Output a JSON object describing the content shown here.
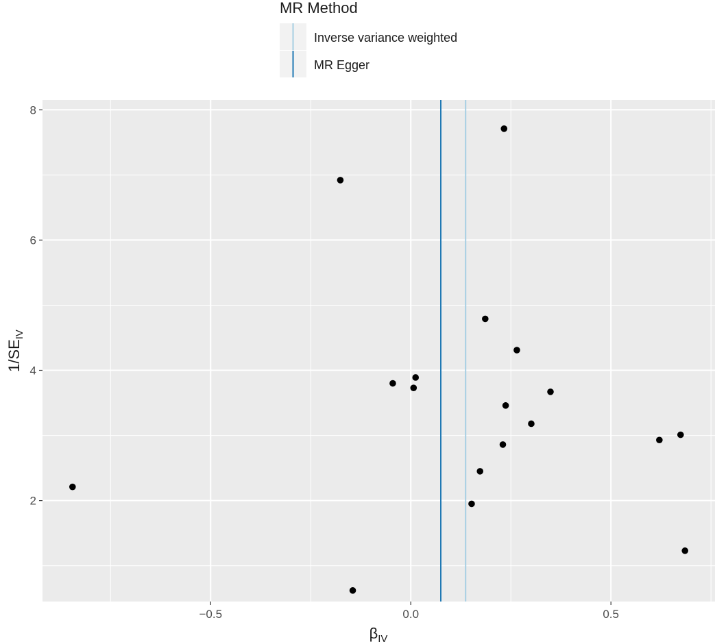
{
  "chart_data": {
    "type": "scatter",
    "title": "",
    "xlabel_main": "β",
    "xlabel_sub": "IV",
    "ylabel_main": "1/SE",
    "ylabel_sub": "IV",
    "xlim": [
      -0.92,
      0.76
    ],
    "ylim": [
      0.45,
      8.15
    ],
    "x_ticks": [
      -0.5,
      0.0,
      0.5
    ],
    "x_tick_labels": [
      "−0.5",
      "0.0",
      "0.5"
    ],
    "y_ticks": [
      2,
      4,
      6,
      8
    ],
    "y_tick_labels": [
      "2",
      "4",
      "6",
      "8"
    ],
    "grid": true,
    "legend_position": "top",
    "legend": {
      "title": "MR Method",
      "entries": [
        {
          "label": "Inverse variance weighted",
          "color": "#a6cee3"
        },
        {
          "label": "MR Egger",
          "color": "#1f78b4"
        }
      ]
    },
    "vlines": [
      {
        "method": "MR Egger",
        "x": 0.075,
        "color": "#1f78b4"
      },
      {
        "method": "Inverse variance weighted",
        "x": 0.137,
        "color": "#a6cee3"
      }
    ],
    "points": [
      {
        "x": 0.233,
        "y": 7.71
      },
      {
        "x": -0.176,
        "y": 6.92
      },
      {
        "x": 0.186,
        "y": 4.79
      },
      {
        "x": 0.265,
        "y": 4.31
      },
      {
        "x": 0.012,
        "y": 3.89
      },
      {
        "x": -0.045,
        "y": 3.8
      },
      {
        "x": 0.007,
        "y": 3.73
      },
      {
        "x": 0.349,
        "y": 3.67
      },
      {
        "x": 0.237,
        "y": 3.46
      },
      {
        "x": 0.301,
        "y": 3.18
      },
      {
        "x": 0.674,
        "y": 3.01
      },
      {
        "x": 0.621,
        "y": 2.93
      },
      {
        "x": 0.23,
        "y": 2.86
      },
      {
        "x": 0.173,
        "y": 2.45
      },
      {
        "x": -0.845,
        "y": 2.21
      },
      {
        "x": 0.152,
        "y": 1.95
      },
      {
        "x": 0.685,
        "y": 1.23
      },
      {
        "x": -0.145,
        "y": 0.62
      }
    ],
    "colors": {
      "panel": "#ebebeb",
      "grid_major": "#ffffff",
      "point": "#000000",
      "legend_key_bg": "#f2f2f2"
    }
  }
}
